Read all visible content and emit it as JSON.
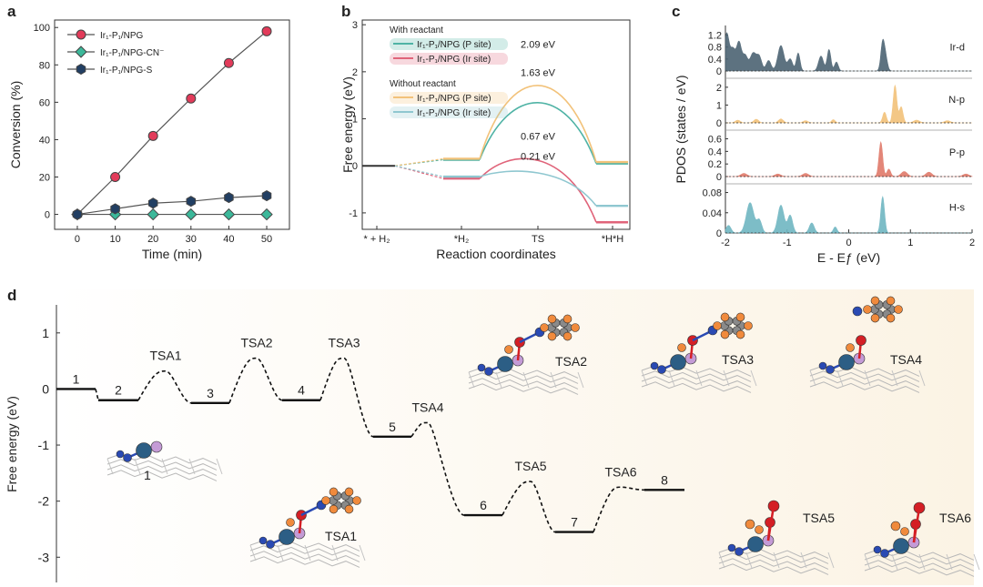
{
  "panels": {
    "a": "a",
    "b": "b",
    "c": "c",
    "d": "d"
  },
  "chart_data": [
    {
      "id": "a",
      "type": "line",
      "xlabel": "Time (min)",
      "ylabel": "Conversion (%)",
      "xlim": [
        -6,
        56
      ],
      "ylim": [
        -8,
        104
      ],
      "xticks": [
        0,
        10,
        20,
        30,
        40,
        50
      ],
      "yticks": [
        0,
        20,
        40,
        60,
        80,
        100
      ],
      "legend_position": "top-left",
      "series": [
        {
          "name": "Ir₁-P₁/NPG",
          "color": "#e23b5a",
          "marker": "circle",
          "x": [
            0,
            10,
            20,
            30,
            40,
            50
          ],
          "y": [
            0,
            20,
            42,
            62,
            81,
            98
          ]
        },
        {
          "name": "Ir₁-P₁/NPG-CN⁻",
          "color": "#3cb89a",
          "marker": "diamond",
          "x": [
            0,
            10,
            20,
            30,
            40,
            50
          ],
          "y": [
            0,
            0,
            0,
            0,
            0,
            0
          ]
        },
        {
          "name": "Ir₁-P₁/NPG-S",
          "color": "#223f63",
          "marker": "hexagon",
          "x": [
            0,
            10,
            20,
            30,
            40,
            50
          ],
          "y": [
            0,
            3,
            6,
            7,
            9,
            10
          ]
        }
      ]
    },
    {
      "id": "b",
      "type": "line",
      "xlabel": "Reaction coordinates",
      "ylabel": "Free energy (eV)",
      "ylim": [
        -1.35,
        3.1
      ],
      "yticks": [
        -1,
        0,
        1,
        2,
        3
      ],
      "categories": [
        "* + H₂",
        "*H₂",
        "TS",
        "*H*H"
      ],
      "legend_titles": [
        "With reactant",
        "Without reactant"
      ],
      "series": [
        {
          "name": "Ir₁-P₁/NPG (P site)",
          "group": "With reactant",
          "color": "#4fb3a5",
          "values": [
            0,
            0.13,
            1.76,
            0.05
          ],
          "ts_label": "1.63 eV"
        },
        {
          "name": "Ir₁-P₁/NPG (Ir site)",
          "group": "With reactant",
          "color": "#e0647a",
          "values": [
            0,
            -0.27,
            0.4,
            -1.2
          ],
          "ts_label": "0.67 eV"
        },
        {
          "name": "Ir₁-P₁/NPG (P site)",
          "group": "Without reactant",
          "color": "#f2c27a",
          "values": [
            0,
            0.15,
            2.24,
            0.08
          ],
          "ts_label": "2.09 eV"
        },
        {
          "name": "Ir₁-P₁/NPG (Ir site)",
          "group": "Without reactant",
          "color": "#8fc7d0",
          "values": [
            0,
            -0.23,
            -0.02,
            -0.85
          ],
          "ts_label": "0.21 eV"
        }
      ]
    },
    {
      "id": "c",
      "type": "area",
      "xlabel": "E - Eƒ (eV)",
      "ylabel": "PDOS (states / eV)",
      "xlim": [
        -2,
        2
      ],
      "xticks": [
        -2,
        -1,
        0,
        1,
        2
      ],
      "series": [
        {
          "name": "Ir-d",
          "color": "#4c6373",
          "ymax": 1.4,
          "yticks": [
            0,
            0.4,
            0.8,
            1.2
          ],
          "peaks": [
            [
              -1.98,
              1.25,
              0.04
            ],
            [
              -1.88,
              0.7,
              0.04
            ],
            [
              -1.78,
              0.95,
              0.04
            ],
            [
              -1.68,
              0.5,
              0.04
            ],
            [
              -1.55,
              0.6,
              0.05
            ],
            [
              -1.45,
              0.45,
              0.04
            ],
            [
              -1.3,
              0.35,
              0.04
            ],
            [
              -1.1,
              0.85,
              0.05
            ],
            [
              -0.95,
              0.4,
              0.04
            ],
            [
              -0.82,
              0.6,
              0.03
            ],
            [
              -0.45,
              0.5,
              0.04
            ],
            [
              -0.32,
              0.72,
              0.03
            ],
            [
              -0.2,
              0.3,
              0.03
            ],
            [
              0.55,
              0.95,
              0.03
            ],
            [
              0.6,
              0.4,
              0.03
            ]
          ]
        },
        {
          "name": "N-p",
          "color": "#f2c27a",
          "ymax": 2.3,
          "yticks": [
            0,
            1,
            2
          ],
          "peaks": [
            [
              -1.8,
              0.15,
              0.04
            ],
            [
              -1.5,
              0.2,
              0.04
            ],
            [
              -1.1,
              0.22,
              0.04
            ],
            [
              -0.7,
              0.12,
              0.04
            ],
            [
              -0.25,
              0.18,
              0.03
            ],
            [
              0.58,
              0.6,
              0.03
            ],
            [
              0.75,
              2.1,
              0.03
            ],
            [
              0.85,
              0.9,
              0.03
            ],
            [
              1.1,
              0.15,
              0.05
            ],
            [
              1.6,
              0.12,
              0.05
            ]
          ]
        },
        {
          "name": "P-p",
          "color": "#e07a6a",
          "ymax": 0.68,
          "yticks": [
            0,
            0.2,
            0.4,
            0.6
          ],
          "peaks": [
            [
              -1.7,
              0.05,
              0.05
            ],
            [
              -1.15,
              0.04,
              0.05
            ],
            [
              -0.7,
              0.05,
              0.05
            ],
            [
              0.52,
              0.55,
              0.03
            ],
            [
              0.65,
              0.12,
              0.03
            ],
            [
              0.9,
              0.08,
              0.05
            ],
            [
              1.3,
              0.07,
              0.05
            ],
            [
              1.9,
              0.04,
              0.05
            ]
          ]
        },
        {
          "name": "H-s",
          "color": "#6fb6c2",
          "ymax": 0.09,
          "yticks": [
            0,
            0.04,
            0.08
          ],
          "peaks": [
            [
              -1.95,
              0.015,
              0.04
            ],
            [
              -1.6,
              0.06,
              0.06
            ],
            [
              -1.45,
              0.025,
              0.04
            ],
            [
              -1.1,
              0.055,
              0.05
            ],
            [
              -0.95,
              0.035,
              0.04
            ],
            [
              -0.6,
              0.02,
              0.04
            ],
            [
              -0.22,
              0.012,
              0.03
            ],
            [
              0.55,
              0.072,
              0.03
            ]
          ]
        }
      ]
    },
    {
      "id": "d",
      "type": "line",
      "ylabel": "Free energy (eV)",
      "ylim": [
        -3.45,
        1.5
      ],
      "yticks": [
        -3,
        -2,
        -1,
        0,
        1
      ],
      "states": [
        {
          "label": "1",
          "value": 0
        },
        {
          "label": "2",
          "value": -0.2
        },
        {
          "label": "3",
          "value": -0.25
        },
        {
          "label": "4",
          "value": -0.2
        },
        {
          "label": "5",
          "value": -0.85
        },
        {
          "label": "6",
          "value": -2.25
        },
        {
          "label": "7",
          "value": -2.55
        },
        {
          "label": "8",
          "value": -1.8
        }
      ],
      "transition_states": [
        {
          "label": "TSA1",
          "value": 0.32
        },
        {
          "label": "TSA2",
          "value": 0.55
        },
        {
          "label": "TSA3",
          "value": 0.55
        },
        {
          "label": "TSA4",
          "value": -0.6
        },
        {
          "label": "TSA5",
          "value": -1.65
        },
        {
          "label": "TSA6",
          "value": -1.75
        }
      ],
      "structure_labels": [
        "1",
        "TSA1",
        "TSA2",
        "TSA3",
        "TSA4",
        "TSA5",
        "TSA6"
      ],
      "atom_colors": {
        "ir": "#2c5e85",
        "p": "#c49bd6",
        "n": "#2a4ab3",
        "o": "#d41f25",
        "h": "#f08a3c",
        "c": "#8a8a8a"
      }
    }
  ]
}
